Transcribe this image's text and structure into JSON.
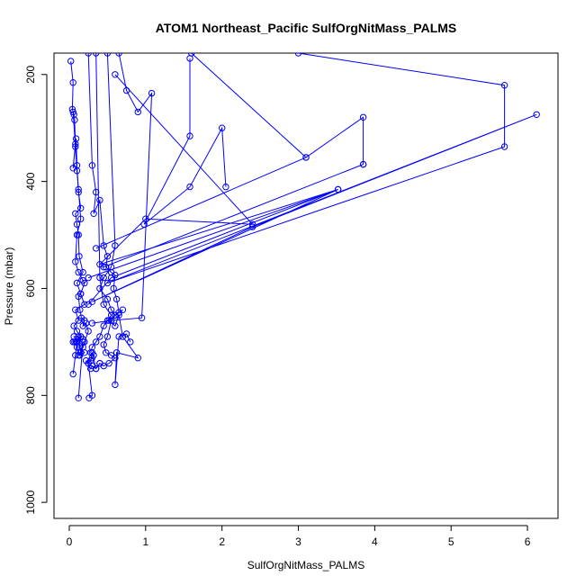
{
  "chart_data": {
    "type": "line",
    "title": "ATOM1 Northeast_Pacific SulfOrgNitMass_PALMS",
    "xlabel": "SulfOrgNitMass_PALMS",
    "ylabel": "Pressure (mbar)",
    "xlim": [
      -0.2,
      6.4
    ],
    "ylim": [
      1030,
      160
    ],
    "y_reversed": true,
    "grid": false,
    "x_ticks": [
      0,
      1,
      2,
      3,
      4,
      5,
      6
    ],
    "y_ticks": [
      200,
      400,
      600,
      800,
      1000
    ],
    "color": "#0000ff",
    "series": [
      {
        "x": [
          0.02,
          0.05,
          0.04,
          0.06,
          0.07,
          0.08,
          0.05,
          0.09,
          0.1,
          0.12,
          0.15,
          0.08,
          0.1,
          0.12,
          0.13,
          0.18,
          0.1,
          0.15,
          0.2,
          0.08,
          0.12,
          0.06,
          0.1,
          0.15,
          0.07,
          0.18,
          0.05,
          0.2,
          0.12,
          0.09,
          0.15,
          0.06,
          0.1,
          0.08,
          0.05
        ],
        "y": [
          175,
          215,
          265,
          275,
          285,
          330,
          375,
          320,
          370,
          420,
          450,
          460,
          480,
          500,
          540,
          570,
          590,
          610,
          630,
          640,
          660,
          670,
          680,
          690,
          700,
          695,
          700,
          720,
          725,
          700,
          690,
          690,
          700,
          725,
          760
        ]
      },
      {
        "x": [
          0.05,
          0.08,
          0.1,
          0.12,
          0.15,
          0.1,
          0.08,
          0.12,
          0.18,
          0.2,
          0.15,
          0.12,
          0.14,
          0.16,
          0.2,
          0.18,
          0.22,
          0.25,
          0.2,
          0.18,
          0.15,
          0.12,
          0.1,
          0.14,
          0.18,
          0.12
        ],
        "y": [
          270,
          335,
          380,
          415,
          470,
          500,
          550,
          570,
          585,
          590,
          610,
          615,
          640,
          655,
          660,
          670,
          665,
          680,
          700,
          710,
          720,
          690,
          710,
          725,
          700,
          805
        ]
      },
      {
        "x": [
          0.25,
          0.3,
          0.35,
          0.32,
          0.4,
          0.45,
          0.5,
          0.48,
          0.55,
          0.6,
          0.58,
          0.62,
          0.65,
          0.7,
          0.6,
          0.55,
          0.5,
          0.45,
          0.48,
          0.55,
          0.6,
          0.52,
          0.45,
          0.4,
          0.35,
          0.3,
          0.28,
          0.25,
          0.3,
          0.26
        ],
        "y": [
          160,
          370,
          420,
          460,
          435,
          520,
          540,
          560,
          570,
          575,
          600,
          620,
          645,
          640,
          650,
          660,
          690,
          705,
          720,
          725,
          730,
          740,
          745,
          740,
          750,
          720,
          735,
          740,
          800,
          805
        ]
      },
      {
        "x": [
          0.35,
          0.4,
          0.45,
          0.55,
          0.5,
          0.45,
          0.4,
          0.35,
          0.3,
          0.28,
          0.32,
          0.3,
          0.25,
          0.22,
          0.28,
          0.3,
          0.35,
          0.4
        ],
        "y": [
          160,
          580,
          630,
          650,
          660,
          670,
          690,
          700,
          710,
          720,
          725,
          730,
          740,
          735,
          750,
          745,
          750,
          740
        ]
      },
      {
        "x": [
          0.5,
          0.6,
          0.55,
          0.45,
          0.4,
          0.5,
          0.55,
          0.6,
          0.52,
          0.6,
          0.65,
          0.7,
          0.9,
          0.62,
          0.6,
          0.65,
          0.75,
          0.8
        ],
        "y": [
          160,
          520,
          560,
          580,
          600,
          620,
          640,
          650,
          660,
          670,
          650,
          690,
          730,
          720,
          780,
          690,
          685,
          700
        ]
      },
      {
        "x": [
          0.65,
          0.75,
          0.9,
          1.08,
          0.95,
          0.55,
          0.3
        ],
        "y": [
          160,
          230,
          270,
          235,
          655,
          660,
          665
        ]
      },
      {
        "x": [
          1.58,
          1.58,
          0.98,
          1.58,
          2.0,
          2.05
        ],
        "y": [
          170,
          315,
          480,
          410,
          300,
          410
        ]
      },
      {
        "x": [
          1.6,
          3.1,
          0.35,
          3.1,
          3.85,
          3.85,
          0.45,
          3.85
        ],
        "y": [
          160,
          355,
          525,
          355,
          280,
          368,
          560,
          368
        ]
      },
      {
        "x": [
          3.0,
          5.7,
          5.7,
          0.5,
          6.12,
          2.4,
          0.3,
          3.52,
          0.25
        ],
        "y": [
          160,
          220,
          335,
          590,
          275,
          485,
          625,
          415,
          580
        ]
      },
      {
        "x": [
          0.6,
          2.4,
          1.0,
          0.4,
          3.52,
          0.55,
          0.25
        ],
        "y": [
          200,
          480,
          470,
          555,
          415,
          580,
          630
        ]
      }
    ]
  }
}
